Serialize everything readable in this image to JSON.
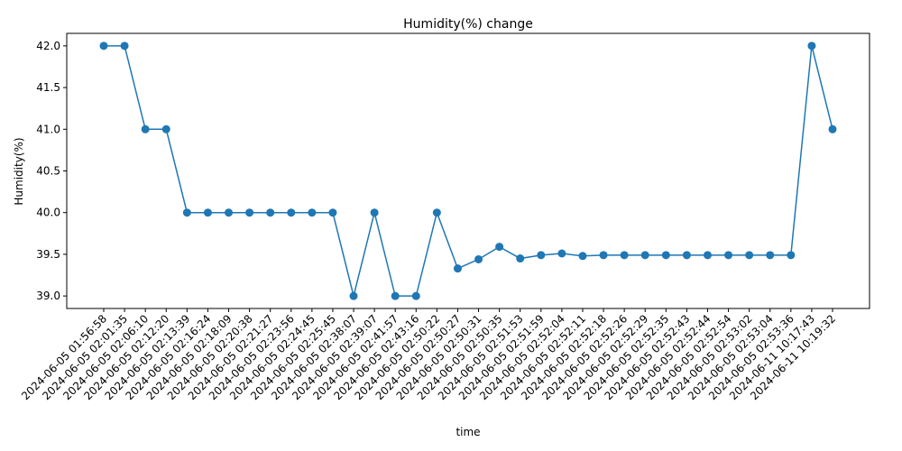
{
  "chart_data": {
    "type": "line",
    "title": "Humidity(%) change",
    "xlabel": "time",
    "ylabel": "Humidity(%)",
    "ylim": [
      38.85,
      42.15
    ],
    "yticks": [
      "39.0",
      "39.5",
      "40.0",
      "40.5",
      "41.0",
      "41.5",
      "42.0"
    ],
    "ytick_values": [
      39.0,
      39.5,
      40.0,
      40.5,
      41.0,
      41.5,
      42.0
    ],
    "grid": false,
    "color": "#1f77b4",
    "categories": [
      "2024-06-05 01:56:58",
      "2024-06-05 02:01:35",
      "2024-06-05 02:06:10",
      "2024-06-05 02:12:20",
      "2024-06-05 02:13:39",
      "2024-06-05 02:16:24",
      "2024-06-05 02:18:09",
      "2024-06-05 02:20:38",
      "2024-06-05 02:21:27",
      "2024-06-05 02:23:56",
      "2024-06-05 02:24:45",
      "2024-06-05 02:25:45",
      "2024-06-05 02:38:07",
      "2024-06-05 02:39:07",
      "2024-06-05 02:41:57",
      "2024-06-05 02:43:16",
      "2024-06-05 02:50:22",
      "2024-06-05 02:50:27",
      "2024-06-05 02:50:31",
      "2024-06-05 02:50:35",
      "2024-06-05 02:51:53",
      "2024-06-05 02:51:59",
      "2024-06-05 02:52:04",
      "2024-06-05 02:52:11",
      "2024-06-05 02:52:18",
      "2024-06-05 02:52:26",
      "2024-06-05 02:52:29",
      "2024-06-05 02:52:35",
      "2024-06-05 02:52:43",
      "2024-06-05 02:52:44",
      "2024-06-05 02:52:54",
      "2024-06-05 02:53:02",
      "2024-06-05 02:53:04",
      "2024-06-05 02:53:36",
      "2024-06-11 10:17:43",
      "2024-06-11 10:19:32"
    ],
    "values": [
      42,
      42,
      41,
      41,
      40,
      40,
      40,
      40,
      40,
      40,
      40,
      40,
      39,
      40,
      39,
      39,
      40,
      39.33,
      39.44,
      39.59,
      39.45,
      39.49,
      39.51,
      39.48,
      39.49,
      39.49,
      39.49,
      39.49,
      39.49,
      39.49,
      39.49,
      39.49,
      39.49,
      39.49,
      42,
      41
    ]
  }
}
